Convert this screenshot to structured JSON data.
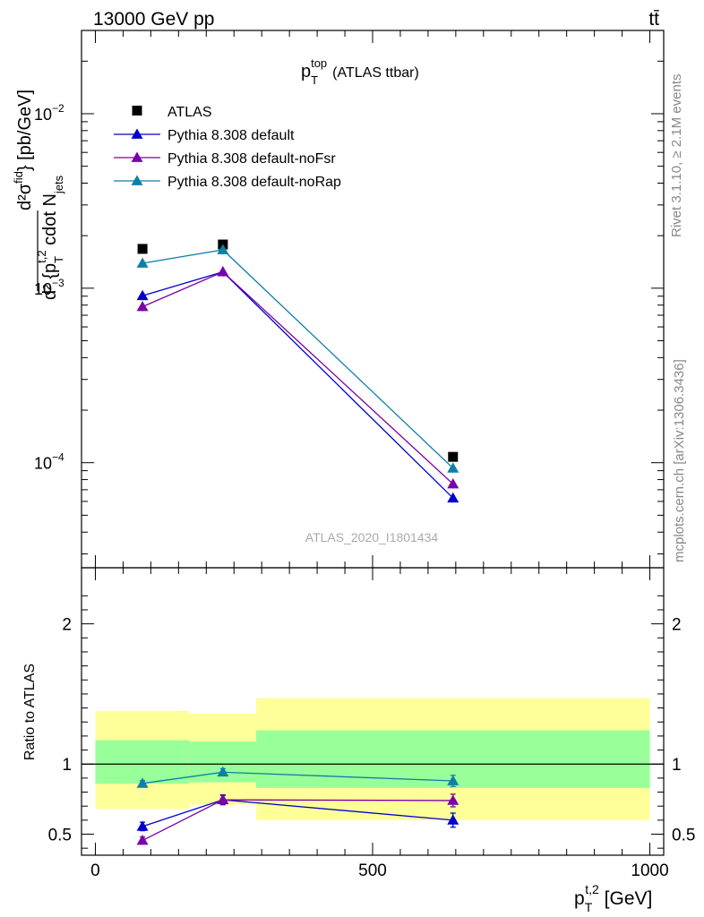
{
  "header": {
    "energy_label": "13000 GeV pp",
    "process_label": "tt̄"
  },
  "side_labels": {
    "rivet": "Rivet 3.1.10, ≥ 2.1M events",
    "mcplots": "mcplots.cern.ch [arXiv:1306.3436]"
  },
  "watermark": "ATLAS_2020_I1801434",
  "chart_data": [
    {
      "type": "scatter",
      "panel": "main",
      "title": "p_T^top (ATLAS ttbar)",
      "title_parts": {
        "base": "p",
        "sub": "T",
        "sup": "top",
        "rest": "(ATLAS ttbar)"
      },
      "ylabel": "d²σ^fid / d² {p_T^t,2 cdot N_jets} [pb/GeV]",
      "ylabel_parts": {
        "top": "d²σ",
        "top_sup": "fid",
        "top_rest": "} [pb/GeV]",
        "bottom": "d² {p",
        "bottom_sub": "T",
        "bottom_sup": "t,2",
        "bottom_rest": " cdot N",
        "bottom_sub2": "jets"
      },
      "yscale": "log",
      "xlim": [
        -25,
        1025
      ],
      "ylim": [
        2.5e-05,
        0.03
      ],
      "y_ticks": [
        {
          "value": 0.0001,
          "base": "10",
          "exp": "−4"
        },
        {
          "value": 0.001,
          "base": "10",
          "exp": "−3"
        },
        {
          "value": 0.01,
          "base": "10",
          "exp": "−2"
        }
      ],
      "legend_position": "top-left",
      "series": [
        {
          "name": "ATLAS",
          "marker": "square",
          "color": "#000000",
          "x": [
            85,
            230,
            645
          ],
          "y": [
            0.00168,
            0.00178,
            0.000108
          ]
        },
        {
          "name": "Pythia 8.308 default",
          "marker": "triangle",
          "color": "#0000cc",
          "x": [
            85,
            230,
            645
          ],
          "y": [
            0.000905,
            0.00124,
            6.27e-05
          ]
        },
        {
          "name": "Pythia 8.308 default-noFsr",
          "marker": "triangle",
          "color": "#7a00a8",
          "x": [
            85,
            230,
            645
          ],
          "y": [
            0.000783,
            0.00124,
            7.55e-05
          ]
        },
        {
          "name": "Pythia 8.308 default-noRap",
          "marker": "triangle",
          "color": "#0f7fa8",
          "x": [
            85,
            230,
            645
          ],
          "y": [
            0.00139,
            0.00166,
            9.3e-05
          ]
        }
      ]
    },
    {
      "type": "scatter",
      "panel": "ratio",
      "ylabel": "Ratio to ATLAS",
      "xlabel": "p_T^t,2 [GeV]",
      "xlabel_parts": {
        "base": "p",
        "sub": "T",
        "sup": "t,2",
        "rest": " [GeV]"
      },
      "xlim": [
        -25,
        1025
      ],
      "ylim": [
        0.35,
        2.4
      ],
      "x_ticks": [
        0,
        500,
        1000
      ],
      "y_ticks": [
        0.5,
        1,
        2
      ],
      "bands": [
        {
          "xlo": 0,
          "xhi": 170,
          "stat_lo": 0.86,
          "stat_hi": 1.17,
          "tot_lo": 0.68,
          "tot_hi": 1.38
        },
        {
          "xlo": 170,
          "xhi": 290,
          "stat_lo": 0.87,
          "stat_hi": 1.16,
          "tot_lo": 0.71,
          "tot_hi": 1.36
        },
        {
          "xlo": 290,
          "xhi": 1000,
          "stat_lo": 0.83,
          "stat_hi": 1.24,
          "tot_lo": 0.6,
          "tot_hi": 1.47
        }
      ],
      "series": [
        {
          "name": "Pythia 8.308 default",
          "color": "#0000cc",
          "x": [
            85,
            230,
            645
          ],
          "y": [
            0.555,
            0.745,
            0.6
          ],
          "err": [
            0.03,
            0.035,
            0.05
          ]
        },
        {
          "name": "Pythia 8.308 default-noFsr",
          "color": "#7a00a8",
          "x": [
            85,
            230,
            645
          ],
          "y": [
            0.455,
            0.745,
            0.74
          ],
          "err": [
            0.025,
            0.03,
            0.045
          ]
        },
        {
          "name": "Pythia 8.308 default-noRap",
          "color": "#0f7fa8",
          "x": [
            85,
            230,
            645
          ],
          "y": [
            0.862,
            0.942,
            0.88
          ],
          "err": [
            0.02,
            0.025,
            0.04
          ]
        }
      ]
    }
  ]
}
